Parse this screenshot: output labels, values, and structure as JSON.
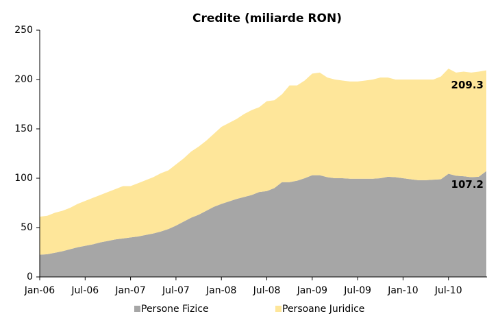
{
  "chart_data": {
    "type": "stacked_area",
    "title": "Credite  (miliarde RON)",
    "categories": [
      "Jan-06",
      null,
      null,
      null,
      null,
      null,
      "Jul-06",
      null,
      null,
      null,
      null,
      null,
      "Jan-07",
      null,
      null,
      null,
      null,
      null,
      "Jul-07",
      null,
      null,
      null,
      null,
      null,
      "Jan-08",
      null,
      null,
      null,
      null,
      null,
      "Jul-08",
      null,
      null,
      null,
      null,
      null,
      "Jan-09",
      null,
      null,
      null,
      null,
      null,
      "Jul-09",
      null,
      null,
      null,
      null,
      null,
      "Jan-10",
      null,
      null,
      null,
      null,
      null,
      "Jul-10",
      null,
      null,
      null,
      null,
      null
    ],
    "series": [
      {
        "name": "Persone Fizice",
        "color": "#a6a6a6",
        "values": [
          22.5,
          23,
          24.5,
          26,
          28,
          30,
          31.5,
          33,
          35,
          36.5,
          38,
          39,
          40,
          41,
          42.5,
          44,
          46,
          48.5,
          52,
          56,
          60,
          63,
          67,
          71,
          74,
          76.5,
          79,
          81,
          83,
          86,
          87,
          90,
          96,
          96,
          97.5,
          100,
          103,
          103,
          101,
          100,
          100,
          99.5,
          99.5,
          99.5,
          99.5,
          100,
          101.5,
          101,
          100,
          99,
          98,
          98,
          98.5,
          99,
          104.5,
          102.5,
          102,
          101,
          101.5,
          107.2
        ]
      },
      {
        "name": "Persoane Juridice",
        "color": "#fee69a",
        "values": [
          38.5,
          39,
          40.5,
          41,
          42,
          44,
          45.5,
          47,
          48,
          49.5,
          51,
          53,
          52,
          54,
          55.5,
          57,
          59,
          59.5,
          62,
          64,
          67,
          69,
          71,
          74,
          78,
          79.5,
          81,
          84,
          86,
          86,
          91,
          89,
          89,
          98,
          96.5,
          99,
          103,
          104,
          101,
          100,
          99,
          98.5,
          98.5,
          99.5,
          100.5,
          102,
          100.5,
          99,
          100,
          101,
          102,
          102,
          101.5,
          104,
          106.5,
          104.5,
          106,
          106,
          106.5,
          102.1
        ]
      }
    ],
    "annotations": [
      "209.3",
      "107.2"
    ],
    "ylim": [
      0,
      250
    ],
    "yticks": [
      0,
      50,
      100,
      150,
      200,
      250
    ],
    "grid": false,
    "legend": "bottom"
  }
}
